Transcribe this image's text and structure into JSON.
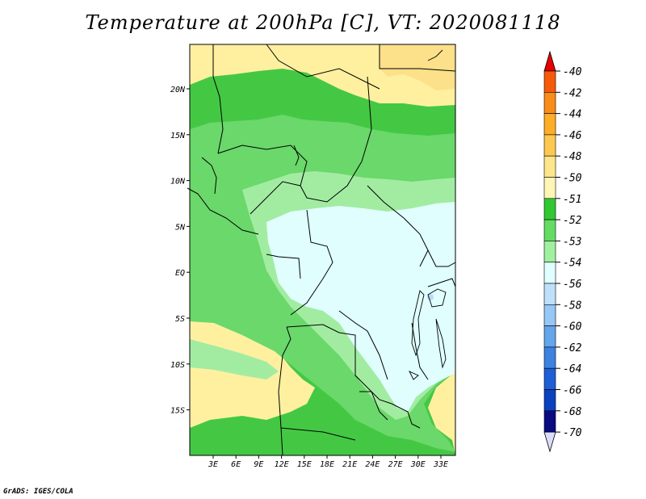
{
  "title": "Temperature at 200hPa [C], VT: 2020081118",
  "footer": "GrADS: IGES/COLA",
  "map": {
    "lat_ticks": [
      "20N",
      "15N",
      "10N",
      "5N",
      "EQ",
      "5S",
      "10S",
      "15S"
    ],
    "lon_ticks": [
      "3E",
      "6E",
      "9E",
      "12E",
      "15E",
      "18E",
      "21E",
      "24E",
      "27E",
      "30E",
      "33E"
    ],
    "zones": {
      "warm": "#fff0a0",
      "warmer": "#fde08a",
      "c51": "#44c844",
      "c52": "#6ad86a",
      "c53": "#a2eca2",
      "c54": "#e0fefe",
      "c56": "#bcd8fa"
    }
  },
  "colorbar": {
    "labels": [
      "-40",
      "-42",
      "-44",
      "-46",
      "-48",
      "-50",
      "-51",
      "-52",
      "-53",
      "-54",
      "-56",
      "-58",
      "-60",
      "-62",
      "-64",
      "-66",
      "-68",
      "-70"
    ],
    "colors": [
      "#f01a1a",
      "#f65a0a",
      "#fa8c1a",
      "#fdad28",
      "#fdc850",
      "#fde68a",
      "#fff5b4",
      "#32c832",
      "#64dc64",
      "#a0f0a0",
      "#e0fefe",
      "#bee0fa",
      "#96c8f5",
      "#64a5eb",
      "#3c82e1",
      "#1e5fd7",
      "#0a41be",
      "#0a0a82"
    ],
    "top_tip_color": "#e60000",
    "bottom_tip_color": "#dcdcff"
  }
}
